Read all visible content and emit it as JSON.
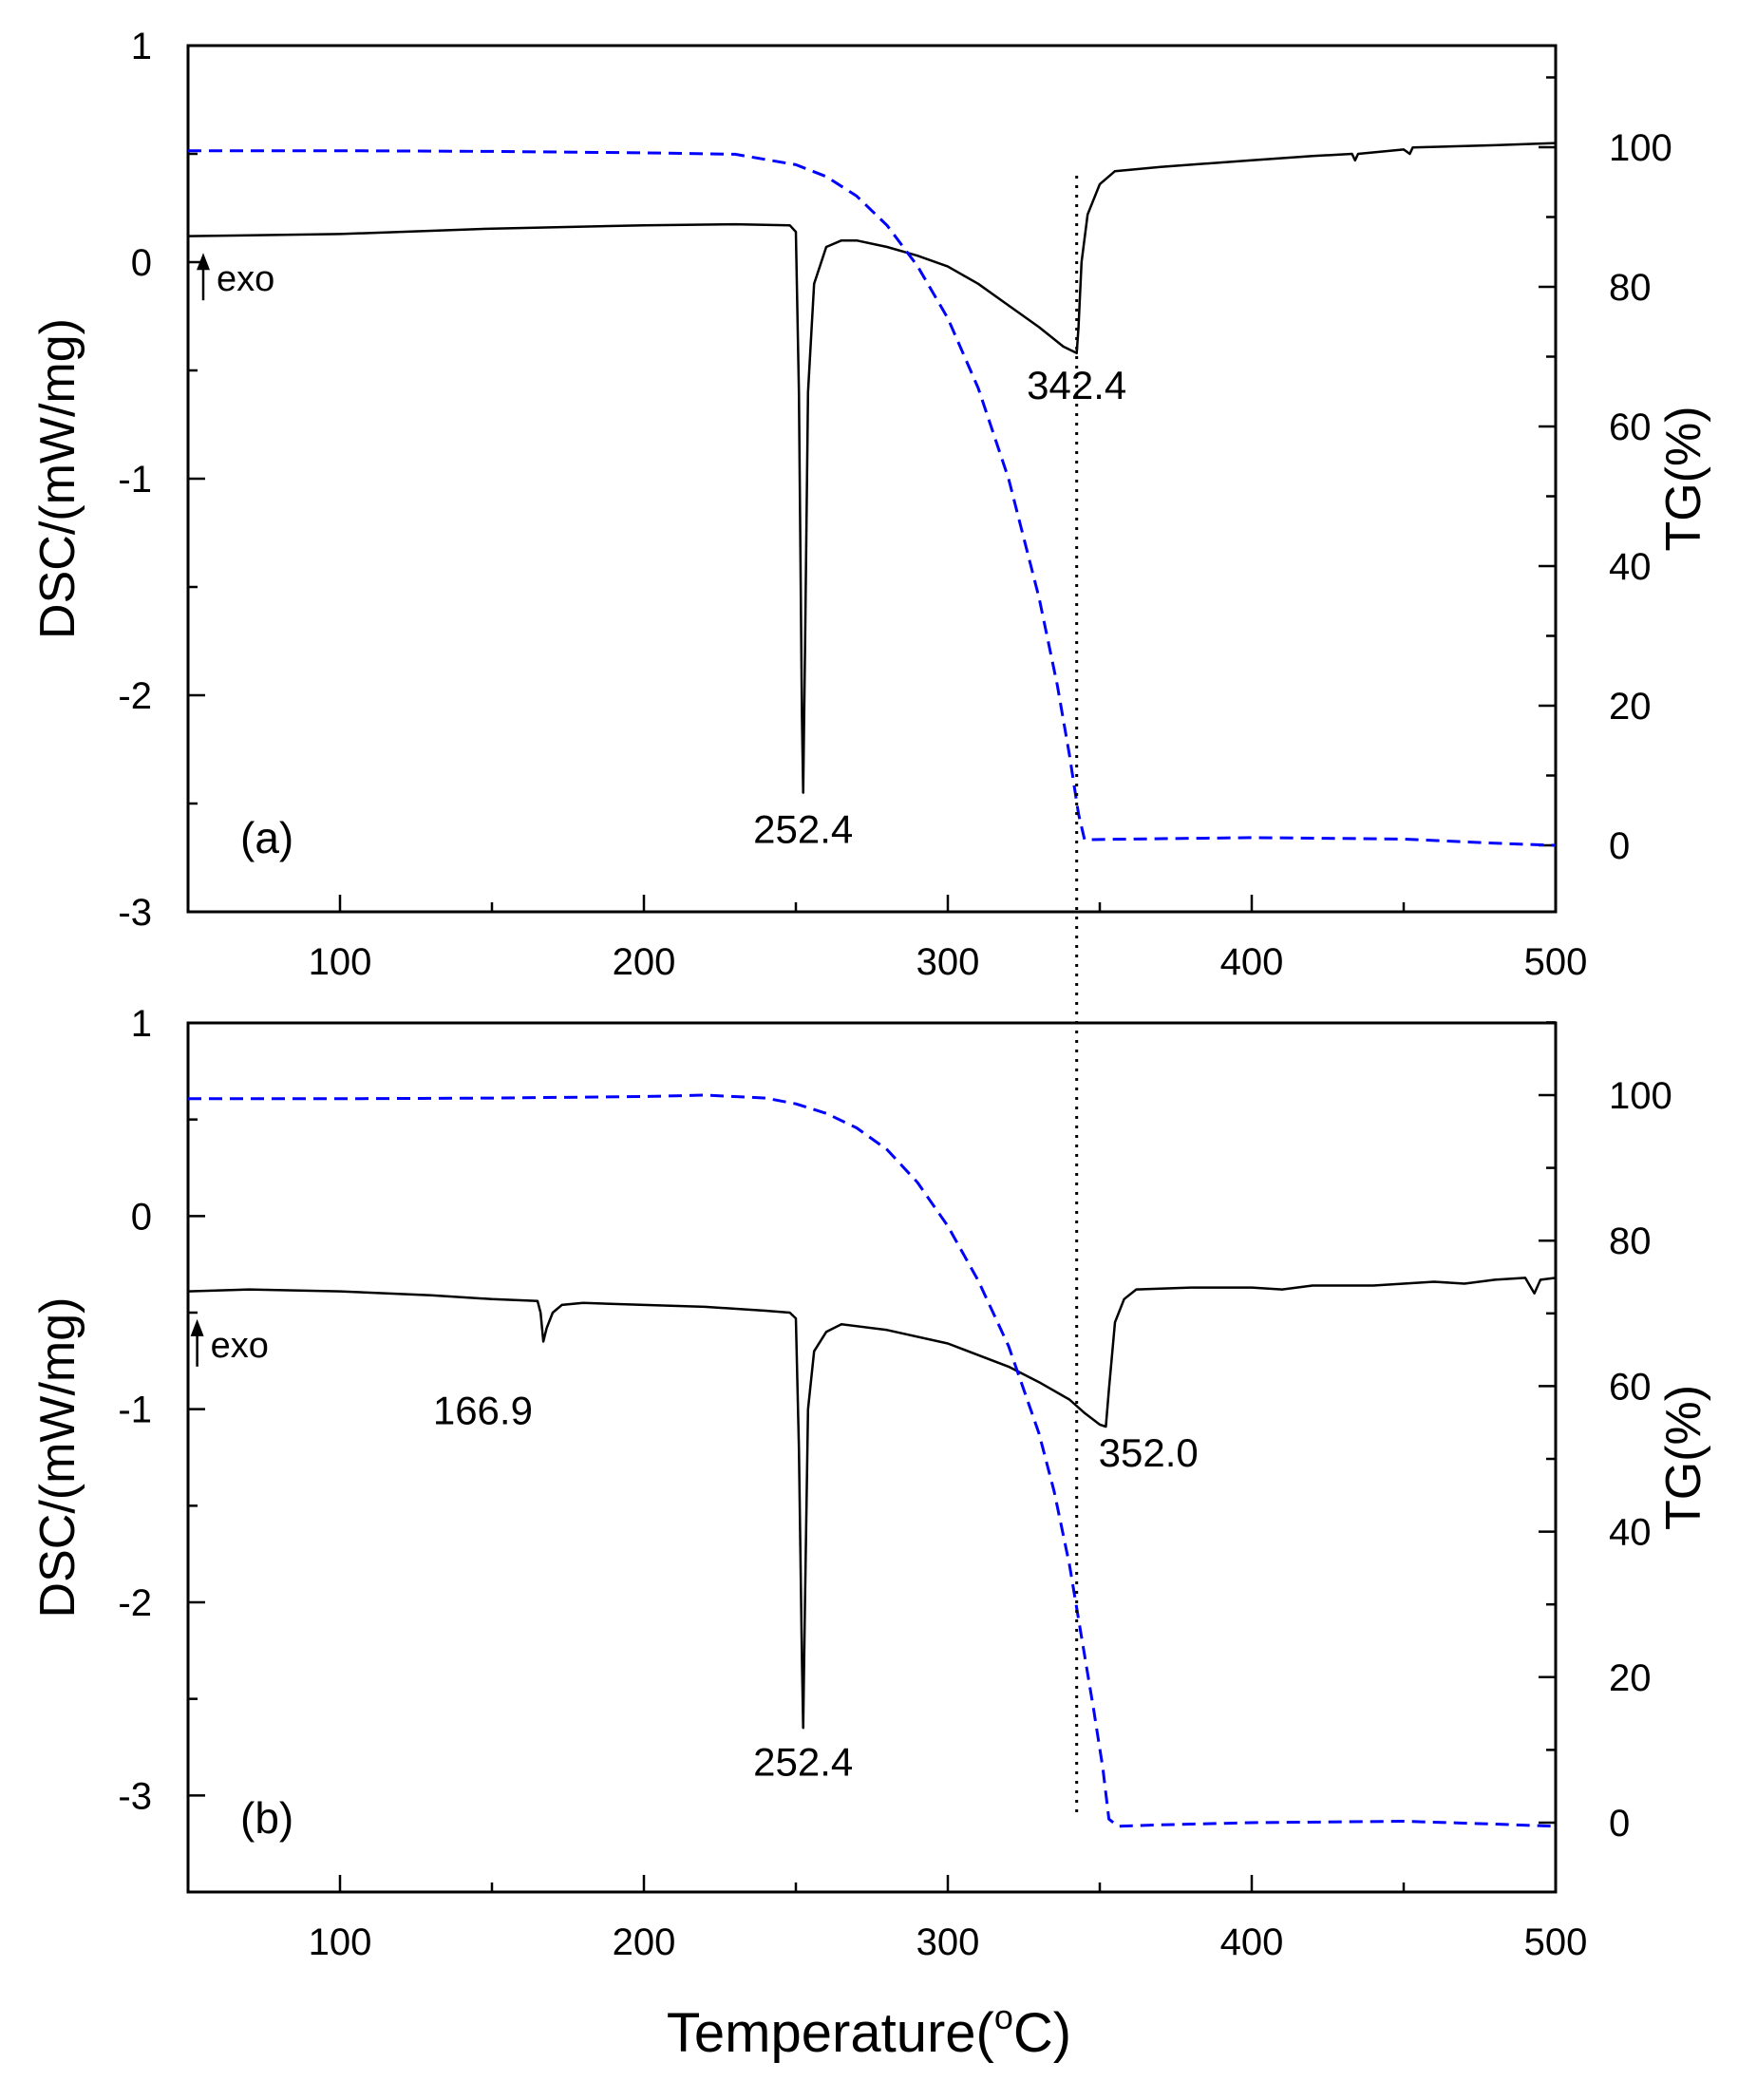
{
  "figure": {
    "xlabel_main": "Temperature(",
    "xlabel_degree": "o",
    "xlabel_unit": "C)"
  },
  "chart_data": [
    {
      "type": "line",
      "panel_label": "(a)",
      "ylabel_left": "DSC/(mW/mg)",
      "ylabel_right": "TG(%)",
      "xlim": [
        50,
        500
      ],
      "ylim_left": [
        -3,
        1
      ],
      "ylim_right": [
        -9,
        110
      ],
      "x_ticks": [
        "100",
        "200",
        "300",
        "400",
        "500"
      ],
      "x_tick_values": [
        100,
        200,
        300,
        400,
        500
      ],
      "y_left_ticks": [
        "1",
        "0",
        "-1",
        "-2",
        "-3"
      ],
      "y_left_tick_values": [
        1,
        0,
        -1,
        -2,
        -3
      ],
      "y_right_ticks": [
        "100",
        "80",
        "60",
        "40",
        "20",
        "0"
      ],
      "y_right_tick_values": [
        100,
        80,
        60,
        40,
        20,
        0
      ],
      "exo_label": "exo",
      "exo_position": {
        "x": 55,
        "y": -0.15
      },
      "annotations": [
        {
          "text": "252.4",
          "x": 252.4,
          "y": -2.55
        },
        {
          "text": "342.4",
          "x": 342.4,
          "y": -0.5
        }
      ],
      "vline_x": 342.4,
      "series": [
        {
          "name": "DSC",
          "axis": "left",
          "color": "#000000",
          "style": "solid",
          "points": [
            [
              50,
              0.12
            ],
            [
              100,
              0.13
            ],
            [
              150,
              0.155
            ],
            [
              200,
              0.17
            ],
            [
              230,
              0.175
            ],
            [
              248,
              0.17
            ],
            [
              250,
              0.14
            ],
            [
              251,
              -0.6
            ],
            [
              252,
              -2.1
            ],
            [
              252.4,
              -2.45
            ],
            [
              253,
              -1.8
            ],
            [
              254,
              -0.6
            ],
            [
              256,
              -0.1
            ],
            [
              260,
              0.07
            ],
            [
              265,
              0.1
            ],
            [
              270,
              0.1
            ],
            [
              280,
              0.07
            ],
            [
              290,
              0.03
            ],
            [
              300,
              -0.02
            ],
            [
              310,
              -0.1
            ],
            [
              320,
              -0.2
            ],
            [
              330,
              -0.3
            ],
            [
              338,
              -0.39
            ],
            [
              342.4,
              -0.42
            ],
            [
              343,
              -0.3
            ],
            [
              344,
              0.0
            ],
            [
              346,
              0.22
            ],
            [
              350,
              0.36
            ],
            [
              355,
              0.42
            ],
            [
              370,
              0.44
            ],
            [
              400,
              0.47
            ],
            [
              420,
              0.49
            ],
            [
              433,
              0.5
            ],
            [
              434,
              0.47
            ],
            [
              435,
              0.5
            ],
            [
              450,
              0.52
            ],
            [
              452,
              0.5
            ],
            [
              453,
              0.53
            ],
            [
              480,
              0.54
            ],
            [
              500,
              0.55
            ]
          ]
        },
        {
          "name": "TG",
          "axis": "right",
          "color": "#0000ff",
          "style": "dashed",
          "points": [
            [
              50,
              99.5
            ],
            [
              100,
              99.5
            ],
            [
              150,
              99.4
            ],
            [
              200,
              99.2
            ],
            [
              230,
              99.0
            ],
            [
              250,
              97.5
            ],
            [
              260,
              95.8
            ],
            [
              270,
              93.0
            ],
            [
              280,
              88.8
            ],
            [
              290,
              83.0
            ],
            [
              300,
              75.5
            ],
            [
              310,
              65.5
            ],
            [
              320,
              52.5
            ],
            [
              330,
              35.5
            ],
            [
              336,
              23.0
            ],
            [
              340,
              13.0
            ],
            [
              343,
              4.5
            ],
            [
              345,
              0.8
            ],
            [
              360,
              0.9
            ],
            [
              400,
              1.1
            ],
            [
              450,
              0.9
            ],
            [
              480,
              0.3
            ],
            [
              500,
              0.0
            ]
          ]
        }
      ]
    },
    {
      "type": "line",
      "panel_label": "(b)",
      "ylabel_left": "DSC/(mW/mg)",
      "ylabel_right": "TG(%)",
      "xlim": [
        50,
        500
      ],
      "ylim_left": [
        -3.5,
        1
      ],
      "ylim_right": [
        -10,
        110
      ],
      "x_ticks": [
        "100",
        "200",
        "300",
        "400",
        "500"
      ],
      "x_tick_values": [
        100,
        200,
        300,
        400,
        500
      ],
      "y_left_ticks": [
        "1",
        "0",
        "-1",
        "-2",
        "-3"
      ],
      "y_left_tick_values": [
        1,
        0,
        -1,
        -2,
        -3
      ],
      "y_right_ticks": [
        "100",
        "80",
        "60",
        "40",
        "20",
        "0"
      ],
      "y_right_tick_values": [
        100,
        80,
        60,
        40,
        20,
        0
      ],
      "exo_label": "exo",
      "exo_position": {
        "x": 53,
        "y": -0.75
      },
      "annotations": [
        {
          "text": "166.9",
          "x": 147,
          "y": -0.93
        },
        {
          "text": "252.4",
          "x": 252.4,
          "y": -2.75
        },
        {
          "text": "352.0",
          "x": 366,
          "y": -1.15
        }
      ],
      "vline_x": 342.4,
      "series": [
        {
          "name": "DSC",
          "axis": "left",
          "color": "#000000",
          "style": "solid",
          "points": [
            [
              50,
              -0.39
            ],
            [
              70,
              -0.38
            ],
            [
              100,
              -0.39
            ],
            [
              130,
              -0.41
            ],
            [
              150,
              -0.43
            ],
            [
              165,
              -0.44
            ],
            [
              166,
              -0.5
            ],
            [
              166.9,
              -0.65
            ],
            [
              168,
              -0.58
            ],
            [
              170,
              -0.5
            ],
            [
              173,
              -0.46
            ],
            [
              180,
              -0.45
            ],
            [
              200,
              -0.46
            ],
            [
              220,
              -0.47
            ],
            [
              240,
              -0.49
            ],
            [
              248,
              -0.5
            ],
            [
              250,
              -0.53
            ],
            [
              251,
              -1.2
            ],
            [
              252,
              -2.3
            ],
            [
              252.4,
              -2.65
            ],
            [
              253,
              -2.0
            ],
            [
              254,
              -1.0
            ],
            [
              256,
              -0.7
            ],
            [
              260,
              -0.6
            ],
            [
              265,
              -0.56
            ],
            [
              280,
              -0.59
            ],
            [
              300,
              -0.66
            ],
            [
              320,
              -0.78
            ],
            [
              330,
              -0.86
            ],
            [
              340,
              -0.95
            ],
            [
              345,
              -1.02
            ],
            [
              350,
              -1.08
            ],
            [
              352,
              -1.09
            ],
            [
              353,
              -0.9
            ],
            [
              355,
              -0.55
            ],
            [
              358,
              -0.43
            ],
            [
              362,
              -0.38
            ],
            [
              380,
              -0.37
            ],
            [
              400,
              -0.37
            ],
            [
              410,
              -0.38
            ],
            [
              420,
              -0.36
            ],
            [
              440,
              -0.36
            ],
            [
              460,
              -0.34
            ],
            [
              470,
              -0.35
            ],
            [
              480,
              -0.33
            ],
            [
              490,
              -0.32
            ],
            [
              493,
              -0.4
            ],
            [
              495,
              -0.33
            ],
            [
              500,
              -0.32
            ]
          ]
        },
        {
          "name": "TG",
          "axis": "right",
          "color": "#0000ff",
          "style": "dashed",
          "points": [
            [
              50,
              99.5
            ],
            [
              100,
              99.5
            ],
            [
              150,
              99.6
            ],
            [
              200,
              99.8
            ],
            [
              220,
              100.0
            ],
            [
              240,
              99.6
            ],
            [
              250,
              98.8
            ],
            [
              260,
              97.5
            ],
            [
              270,
              95.5
            ],
            [
              280,
              92.5
            ],
            [
              290,
              88.0
            ],
            [
              300,
              82.0
            ],
            [
              310,
              74.5
            ],
            [
              320,
              65.5
            ],
            [
              330,
              53.5
            ],
            [
              335,
              45.5
            ],
            [
              340,
              35.5
            ],
            [
              345,
              23.0
            ],
            [
              348,
              15.5
            ],
            [
              351,
              7.5
            ],
            [
              353,
              0.5
            ],
            [
              356,
              -0.5
            ],
            [
              370,
              -0.3
            ],
            [
              400,
              0.0
            ],
            [
              450,
              0.2
            ],
            [
              480,
              -0.2
            ],
            [
              500,
              -0.5
            ]
          ]
        }
      ]
    }
  ]
}
